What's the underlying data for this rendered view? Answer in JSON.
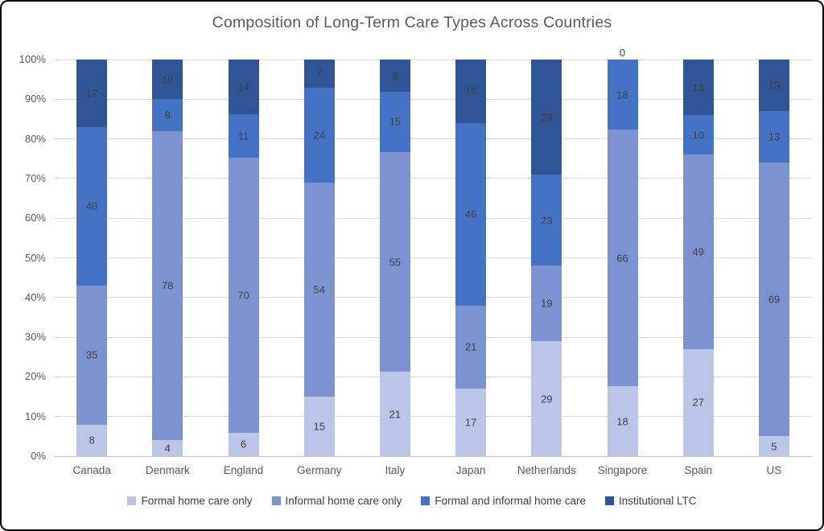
{
  "title": "Composition of Long-Term Care Types Across Countries",
  "chart_data": {
    "type": "bar",
    "subtype": "stacked-100-percent-column",
    "title": "Composition of Long-Term Care Types Across Countries",
    "categories": [
      "Canada",
      "Denmark",
      "England",
      "Germany",
      "Italy",
      "Japan",
      "Netherlands",
      "Singapore",
      "Spain",
      "US"
    ],
    "series": [
      {
        "name": "Formal home care only",
        "color": "#BAC5E7",
        "values": [
          8,
          4,
          6,
          15,
          21,
          17,
          29,
          18,
          27,
          5
        ]
      },
      {
        "name": "Informal home care only",
        "color": "#7D92D1",
        "values": [
          35,
          78,
          70,
          54,
          55,
          21,
          19,
          66,
          49,
          69
        ]
      },
      {
        "name": "Formal and informal home care",
        "color": "#4472C4",
        "values": [
          40,
          8,
          11,
          24,
          15,
          46,
          23,
          18,
          10,
          13
        ]
      },
      {
        "name": "Institutional LTC",
        "color": "#2F5597",
        "values": [
          17,
          10,
          14,
          7,
          8,
          16,
          29,
          0,
          14,
          13
        ]
      }
    ],
    "xlabel": "",
    "ylabel": "",
    "y_ticks": [
      "0%",
      "10%",
      "20%",
      "30%",
      "40%",
      "50%",
      "60%",
      "70%",
      "80%",
      "90%",
      "100%"
    ],
    "ylim": [
      0,
      100
    ],
    "grid": true,
    "data_labels": true,
    "legend_position": "bottom"
  },
  "colors": {
    "title_text": "#595959",
    "axis_text": "#595959",
    "data_label_text": "#404040",
    "gridline": "#D9D9D9",
    "frame_border": "#000000",
    "background": "#FFFFFF"
  }
}
